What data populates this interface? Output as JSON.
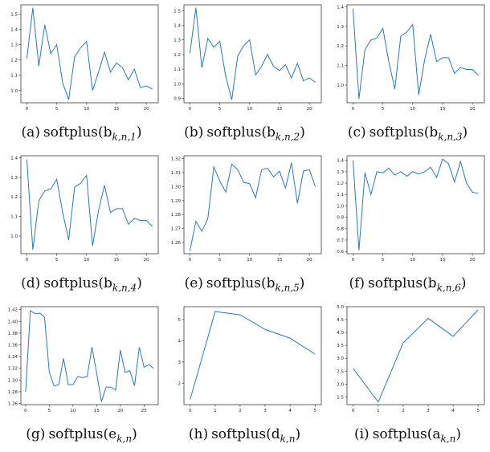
{
  "series_color": "#2a7ab9",
  "chart_data": [
    {
      "id": "a",
      "type": "line",
      "label": "(a)",
      "caption": "softplus(b_{k,n,1})",
      "caption_parts": {
        "base": "softplus(b",
        "sub": "k,n,1",
        "close": ")"
      },
      "x": [
        0,
        1,
        2,
        3,
        4,
        5,
        6,
        7,
        8,
        9,
        10,
        11,
        12,
        13,
        14,
        15,
        16,
        17,
        18,
        19,
        20,
        21
      ],
      "y": [
        1.21,
        1.54,
        1.16,
        1.43,
        1.24,
        1.3,
        1.05,
        0.94,
        1.22,
        1.28,
        1.32,
        1.0,
        1.12,
        1.25,
        1.12,
        1.18,
        1.15,
        1.07,
        1.14,
        1.02,
        1.03,
        1.01
      ],
      "xlim": [
        -1,
        22
      ],
      "ylim": [
        0.92,
        1.56
      ],
      "xticks": [
        0,
        5,
        10,
        15,
        20
      ],
      "yticks": [
        1.0,
        1.1,
        1.2,
        1.3,
        1.4,
        1.5
      ],
      "ytick_labels": [
        "1.0",
        "1.1",
        "1.2",
        "1.3",
        "1.4",
        "1.5"
      ]
    },
    {
      "id": "b",
      "type": "line",
      "label": "(b)",
      "caption": "softplus(b_{k,n,2})",
      "caption_parts": {
        "base": "softplus(b",
        "sub": "k,n,2",
        "close": ")"
      },
      "x": [
        0,
        1,
        2,
        3,
        4,
        5,
        6,
        7,
        8,
        9,
        10,
        11,
        12,
        13,
        14,
        15,
        16,
        17,
        18,
        19,
        20,
        21
      ],
      "y": [
        1.21,
        1.52,
        1.11,
        1.31,
        1.25,
        1.29,
        1.05,
        0.89,
        1.19,
        1.26,
        1.3,
        1.06,
        1.12,
        1.2,
        1.12,
        1.09,
        1.13,
        1.04,
        1.14,
        1.02,
        1.04,
        1.01
      ],
      "xlim": [
        -1,
        22
      ],
      "ylim": [
        0.87,
        1.54
      ],
      "xticks": [
        0,
        5,
        10,
        15,
        20
      ],
      "yticks": [
        0.9,
        1.0,
        1.1,
        1.2,
        1.3,
        1.4,
        1.5
      ],
      "ytick_labels": [
        "0.9",
        "1.0",
        "1.1",
        "1.2",
        "1.3",
        "1.4",
        "1.5"
      ]
    },
    {
      "id": "c",
      "type": "line",
      "label": "(c)",
      "caption": "softplus(b_{k,n,3})",
      "caption_parts": {
        "base": "softplus(b",
        "sub": "k,n,3",
        "close": ")"
      },
      "x": [
        0,
        1,
        2,
        3,
        4,
        5,
        6,
        7,
        8,
        9,
        10,
        11,
        12,
        13,
        14,
        15,
        16,
        17,
        18,
        19,
        20,
        21
      ],
      "y": [
        1.39,
        0.93,
        1.18,
        1.23,
        1.24,
        1.29,
        1.12,
        0.98,
        1.25,
        1.27,
        1.31,
        0.95,
        1.13,
        1.26,
        1.12,
        1.14,
        1.14,
        1.06,
        1.09,
        1.08,
        1.08,
        1.05
      ],
      "xlim": [
        -1,
        22
      ],
      "ylim": [
        0.91,
        1.41
      ],
      "xticks": [
        0,
        5,
        10,
        15,
        20
      ],
      "yticks": [
        1.0,
        1.1,
        1.2,
        1.3,
        1.4
      ],
      "ytick_labels": [
        "1.0",
        "1.1",
        "1.2",
        "1.3",
        "1.4"
      ]
    },
    {
      "id": "d",
      "type": "line",
      "label": "(d)",
      "caption": "softplus(b_{k,n,4})",
      "caption_parts": {
        "base": "softplus(b",
        "sub": "k,n,4",
        "close": ")"
      },
      "x": [
        0,
        1,
        2,
        3,
        4,
        5,
        6,
        7,
        8,
        9,
        10,
        11,
        12,
        13,
        14,
        15,
        16,
        17,
        18,
        19,
        20,
        21
      ],
      "y": [
        1.39,
        0.93,
        1.18,
        1.23,
        1.24,
        1.29,
        1.12,
        0.98,
        1.25,
        1.27,
        1.31,
        0.95,
        1.13,
        1.26,
        1.12,
        1.14,
        1.14,
        1.06,
        1.09,
        1.08,
        1.08,
        1.05
      ],
      "xlim": [
        -1,
        22
      ],
      "ylim": [
        0.91,
        1.41
      ],
      "xticks": [
        0,
        5,
        10,
        15,
        20
      ],
      "yticks": [
        1.0,
        1.1,
        1.2,
        1.3,
        1.4
      ],
      "ytick_labels": [
        "1.0",
        "1.1",
        "1.2",
        "1.3",
        "1.4"
      ]
    },
    {
      "id": "e",
      "type": "line",
      "label": "(e)",
      "caption": "softplus(b_{k,n,5})",
      "caption_parts": {
        "base": "softplus(b",
        "sub": "k,n,5",
        "close": ")"
      },
      "x": [
        0,
        1,
        2,
        3,
        4,
        5,
        6,
        7,
        8,
        9,
        10,
        11,
        12,
        13,
        14,
        15,
        16,
        17,
        18,
        19,
        20,
        21
      ],
      "y": [
        1.254,
        1.275,
        1.268,
        1.277,
        1.314,
        1.304,
        1.296,
        1.316,
        1.312,
        1.303,
        1.302,
        1.292,
        1.312,
        1.313,
        1.307,
        1.311,
        1.299,
        1.317,
        1.288,
        1.311,
        1.312,
        1.3
      ],
      "xlim": [
        -1,
        22
      ],
      "ylim": [
        1.252,
        1.322
      ],
      "xticks": [
        0,
        5,
        10,
        15,
        20
      ],
      "yticks": [
        1.26,
        1.27,
        1.28,
        1.29,
        1.3,
        1.31,
        1.32
      ],
      "ytick_labels": [
        "1.26",
        "1.27",
        "1.28",
        "1.29",
        "1.30",
        "1.31",
        "1.32"
      ]
    },
    {
      "id": "f",
      "type": "line",
      "label": "(f)",
      "caption": "softplus(b_{k,n,6})",
      "caption_parts": {
        "base": "softplus(b",
        "sub": "k,n,6",
        "close": ")"
      },
      "x": [
        0,
        1,
        2,
        3,
        4,
        5,
        6,
        7,
        8,
        9,
        10,
        11,
        12,
        13,
        14,
        15,
        16,
        17,
        18,
        19,
        20,
        21
      ],
      "y": [
        1.4,
        0.61,
        1.29,
        1.1,
        1.3,
        1.29,
        1.33,
        1.27,
        1.3,
        1.26,
        1.3,
        1.28,
        1.3,
        1.34,
        1.25,
        1.41,
        1.37,
        1.21,
        1.39,
        1.2,
        1.12,
        1.11
      ],
      "xlim": [
        -1,
        22
      ],
      "ylim": [
        0.58,
        1.44
      ],
      "xticks": [
        0,
        5,
        10,
        15,
        20
      ],
      "yticks": [
        0.6,
        0.7,
        0.8,
        0.9,
        1.0,
        1.1,
        1.2,
        1.3,
        1.4
      ],
      "ytick_labels": [
        "0.6",
        "0.7",
        "0.8",
        "0.9",
        "1.0",
        "1.1",
        "1.2",
        "1.3",
        "1.4"
      ]
    },
    {
      "id": "g",
      "type": "line",
      "label": "(g)",
      "caption": "softplus(e_{k,n})",
      "caption_parts": {
        "base": "softplus(e",
        "sub": "k,n",
        "close": ")"
      },
      "x": [
        0,
        1,
        2,
        3,
        4,
        5,
        6,
        7,
        8,
        9,
        10,
        11,
        12,
        13,
        14,
        15,
        16,
        17,
        18,
        19,
        20,
        21,
        22,
        23,
        24,
        25,
        26,
        27
      ],
      "y": [
        1.28,
        1.418,
        1.413,
        1.414,
        1.407,
        1.313,
        1.29,
        1.292,
        1.337,
        1.292,
        1.292,
        1.306,
        1.304,
        1.306,
        1.356,
        1.312,
        1.263,
        1.288,
        1.288,
        1.283,
        1.351,
        1.313,
        1.316,
        1.29,
        1.356,
        1.322,
        1.326,
        1.32
      ],
      "xlim": [
        -1,
        28
      ],
      "ylim": [
        1.258,
        1.425
      ],
      "xticks": [
        0,
        5,
        10,
        15,
        20,
        25
      ],
      "yticks": [
        1.26,
        1.28,
        1.3,
        1.32,
        1.34,
        1.36,
        1.38,
        1.4,
        1.42
      ],
      "ytick_labels": [
        "1.26",
        "1.28",
        "1.30",
        "1.32",
        "1.34",
        "1.36",
        "1.38",
        "1.40",
        "1.42"
      ]
    },
    {
      "id": "h",
      "type": "line",
      "label": "(h)",
      "caption": "softplus(d_{k,n})",
      "caption_parts": {
        "base": "softplus(d",
        "sub": "k,n",
        "close": ")"
      },
      "x": [
        0,
        1,
        2,
        3,
        4,
        5
      ],
      "y": [
        1.25,
        5.37,
        5.22,
        4.53,
        4.12,
        3.37
      ],
      "xlim": [
        -0.25,
        5.25
      ],
      "ylim": [
        1.0,
        5.6
      ],
      "xticks": [
        0,
        1,
        2,
        3,
        4,
        5
      ],
      "yticks": [
        2,
        3,
        4,
        5
      ],
      "ytick_labels": [
        "2",
        "3",
        "4",
        "5"
      ]
    },
    {
      "id": "i",
      "type": "line",
      "label": "(i)",
      "caption": "softplus(a_{k,n})",
      "caption_parts": {
        "base": "softplus(a",
        "sub": "k,n",
        "close": ")"
      },
      "x": [
        0,
        1,
        2,
        3,
        4,
        5
      ],
      "y": [
        2.6,
        1.3,
        3.6,
        4.55,
        3.85,
        4.88
      ],
      "xlim": [
        -0.25,
        5.25
      ],
      "ylim": [
        1.2,
        5.0
      ],
      "xticks": [
        0,
        1,
        2,
        3,
        4,
        5
      ],
      "yticks": [
        1.5,
        2.0,
        2.5,
        3.0,
        3.5,
        4.0,
        4.5,
        5.0
      ],
      "ytick_labels": [
        "1.5",
        "2.0",
        "2.5",
        "3.0",
        "3.5",
        "4.0",
        "4.5",
        "5.0"
      ]
    }
  ]
}
